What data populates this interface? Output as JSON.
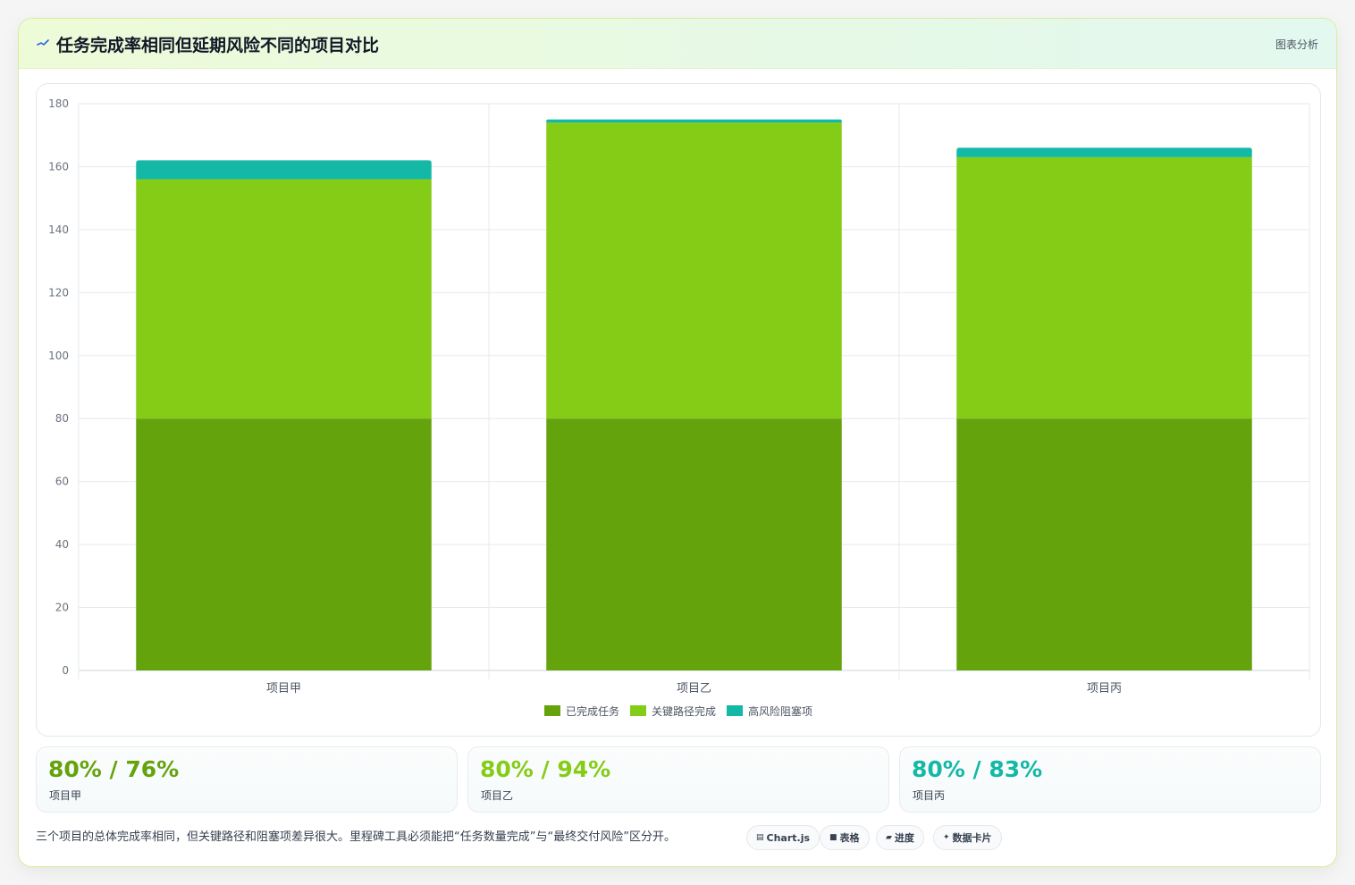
{
  "header": {
    "title": "任务完成率相同但延期风险不同的项目对比",
    "tag": "图表分析",
    "logo_icon": "sparkline-icon",
    "accent": "#2563eb"
  },
  "chart_data": {
    "type": "bar",
    "stacked": true,
    "categories": [
      "项目甲",
      "项目乙",
      "项目丙"
    ],
    "series": [
      {
        "name": "已完成任务",
        "values": [
          80,
          80,
          80
        ],
        "color": "#65a30d"
      },
      {
        "name": "关键路径完成",
        "values": [
          76,
          94,
          83
        ],
        "color": "#84cc16"
      },
      {
        "name": "高风险阻塞项",
        "values": [
          6,
          1,
          3
        ],
        "color": "#14b8a6"
      }
    ],
    "ylim": [
      0,
      180
    ],
    "yticks": [
      "0",
      "20",
      "40",
      "60",
      "80",
      "100",
      "120",
      "140",
      "160",
      "180"
    ],
    "grid": true,
    "legend": "bottom"
  },
  "stats": [
    {
      "value": "80% / 76%",
      "label": "项目甲",
      "color": "#65a30d"
    },
    {
      "value": "80% / 94%",
      "label": "项目乙",
      "color": "#84cc16"
    },
    {
      "value": "80% / 83%",
      "label": "项目丙",
      "color": "#14b8a6"
    }
  ],
  "footer": {
    "note": "三个项目的总体完成率相同，但关键路径和阻塞项差异很大。里程碑工具必须能把“任务数量完成”与“最终交付风险”区分开。",
    "chips": [
      {
        "icon": "chart-icon",
        "glyph": "▤",
        "label": "Chart.js"
      },
      {
        "icon": "table-icon",
        "glyph": "■",
        "label": "表格"
      },
      {
        "icon": "progress-icon",
        "glyph": "▰",
        "label": "进度"
      },
      {
        "icon": "sparkle-icon",
        "glyph": "✦",
        "label": "数据卡片"
      }
    ]
  }
}
